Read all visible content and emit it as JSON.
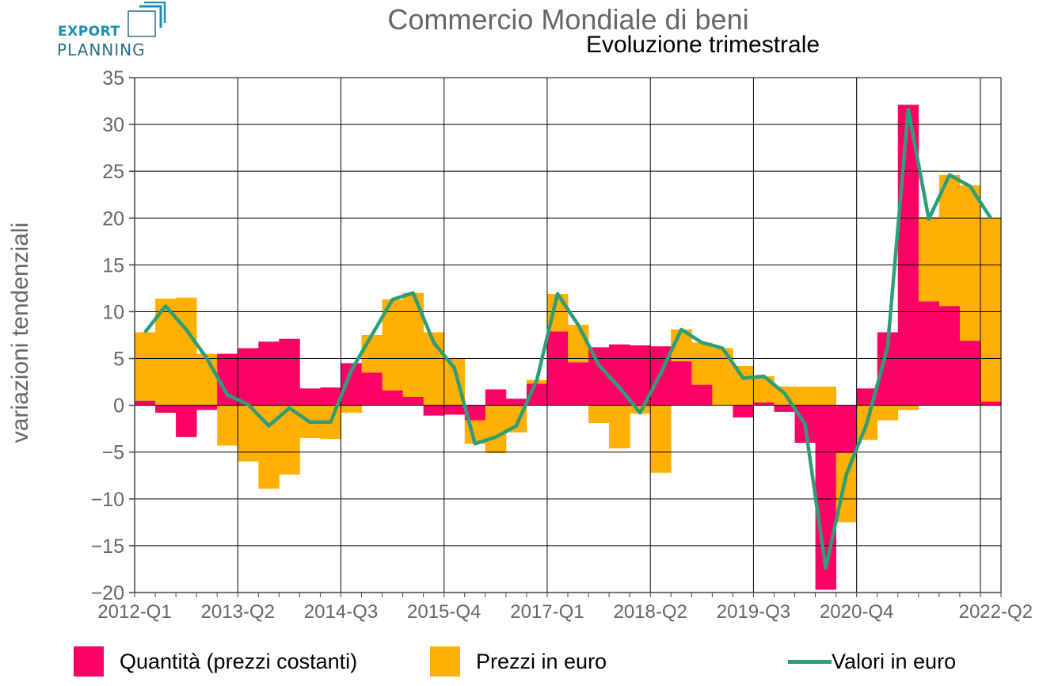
{
  "logo": {
    "line1": "EXPORT",
    "line2": "PLANNING",
    "line1_color": "#1a8fb0",
    "line2_color": "#2a6f8a"
  },
  "colors": {
    "quantita": "#ff0066",
    "prezzi": "#ffb000",
    "valori": "#2e9e78",
    "grid": "#000000",
    "tick_text": "#666666"
  },
  "chart_data": {
    "type": "bar",
    "title": "Commercio Mondiale di beni",
    "subtitle": "Evoluzione trimestrale",
    "xlabel": "",
    "ylabel": "variazioni tendenziali",
    "ylim": [
      -20,
      35
    ],
    "yticks": [
      35,
      30,
      25,
      20,
      15,
      10,
      5,
      0,
      -5,
      -10,
      -15,
      -20
    ],
    "ytick_labels": [
      "35",
      "30",
      "25",
      "20",
      "15",
      "10",
      "5",
      "0",
      "−5",
      "−10",
      "−15",
      "−20"
    ],
    "xtick_labels": [
      "2012-Q1",
      "2013-Q2",
      "2014-Q3",
      "2015-Q4",
      "2017-Q1",
      "2018-Q2",
      "2019-Q3",
      "2020-Q4",
      "2022-Q2"
    ],
    "xtick_positions": [
      0,
      5,
      10,
      15,
      20,
      25,
      30,
      35,
      41
    ],
    "grid": true,
    "legend_position": "bottom",
    "stacked": true,
    "categories": [
      "2012-Q1",
      "2012-Q2",
      "2012-Q3",
      "2012-Q4",
      "2013-Q1",
      "2013-Q2",
      "2013-Q3",
      "2013-Q4",
      "2014-Q1",
      "2014-Q2",
      "2014-Q3",
      "2014-Q4",
      "2015-Q1",
      "2015-Q2",
      "2015-Q3",
      "2015-Q4",
      "2016-Q1",
      "2016-Q2",
      "2016-Q3",
      "2016-Q4",
      "2017-Q1",
      "2017-Q2",
      "2017-Q3",
      "2017-Q4",
      "2018-Q1",
      "2018-Q2",
      "2018-Q3",
      "2018-Q4",
      "2019-Q1",
      "2019-Q2",
      "2019-Q3",
      "2019-Q4",
      "2020-Q1",
      "2020-Q2",
      "2020-Q3",
      "2020-Q4",
      "2021-Q1",
      "2021-Q2",
      "2021-Q3",
      "2021-Q4",
      "2022-Q1",
      "2022-Q2"
    ],
    "series": [
      {
        "name": "Quantità (prezzi costanti)",
        "kind": "bar",
        "values": [
          0.5,
          -0.8,
          -3.4,
          -0.5,
          5.5,
          6.1,
          6.8,
          7.1,
          1.8,
          1.9,
          4.5,
          3.5,
          1.6,
          0.9,
          -1.1,
          -1.0,
          -1.6,
          1.7,
          0.7,
          2.3,
          7.9,
          4.6,
          6.2,
          6.5,
          6.4,
          6.3,
          4.7,
          2.2,
          0.0,
          -1.3,
          0.3,
          -0.7,
          -4.0,
          -19.7,
          -5.1,
          1.8,
          7.8,
          32.1,
          11.1,
          10.6,
          6.9,
          0.4
        ]
      },
      {
        "name": "Prezzi in euro",
        "kind": "bar",
        "values": [
          7.3,
          11.4,
          11.5,
          5.5,
          -4.3,
          -6.0,
          -8.9,
          -7.4,
          -3.5,
          -3.6,
          -0.8,
          4.0,
          9.7,
          11.1,
          7.8,
          5.0,
          -2.5,
          -5.1,
          -2.9,
          0.4,
          4.0,
          4.0,
          -1.9,
          -4.6,
          -0.9,
          -7.2,
          3.4,
          4.5,
          6.1,
          4.2,
          2.8,
          2.0,
          2.0,
          2.0,
          -7.4,
          -3.7,
          -1.6,
          -0.5,
          9.0,
          14.0,
          16.6,
          19.6
        ]
      },
      {
        "name": "Valori in euro",
        "kind": "line",
        "values": [
          7.8,
          10.6,
          8.1,
          5.0,
          1.1,
          0.1,
          -2.2,
          -0.3,
          -1.8,
          -1.8,
          3.7,
          7.5,
          11.3,
          12.0,
          6.7,
          4.0,
          -4.1,
          -3.4,
          -2.2,
          2.7,
          11.9,
          8.6,
          4.3,
          1.9,
          -0.8,
          3.4,
          8.1,
          6.7,
          6.1,
          2.9,
          3.1,
          1.3,
          -2.0,
          -17.4,
          -7.4,
          -1.9,
          6.2,
          31.6,
          19.9,
          24.6,
          23.4,
          20.0
        ]
      }
    ]
  }
}
